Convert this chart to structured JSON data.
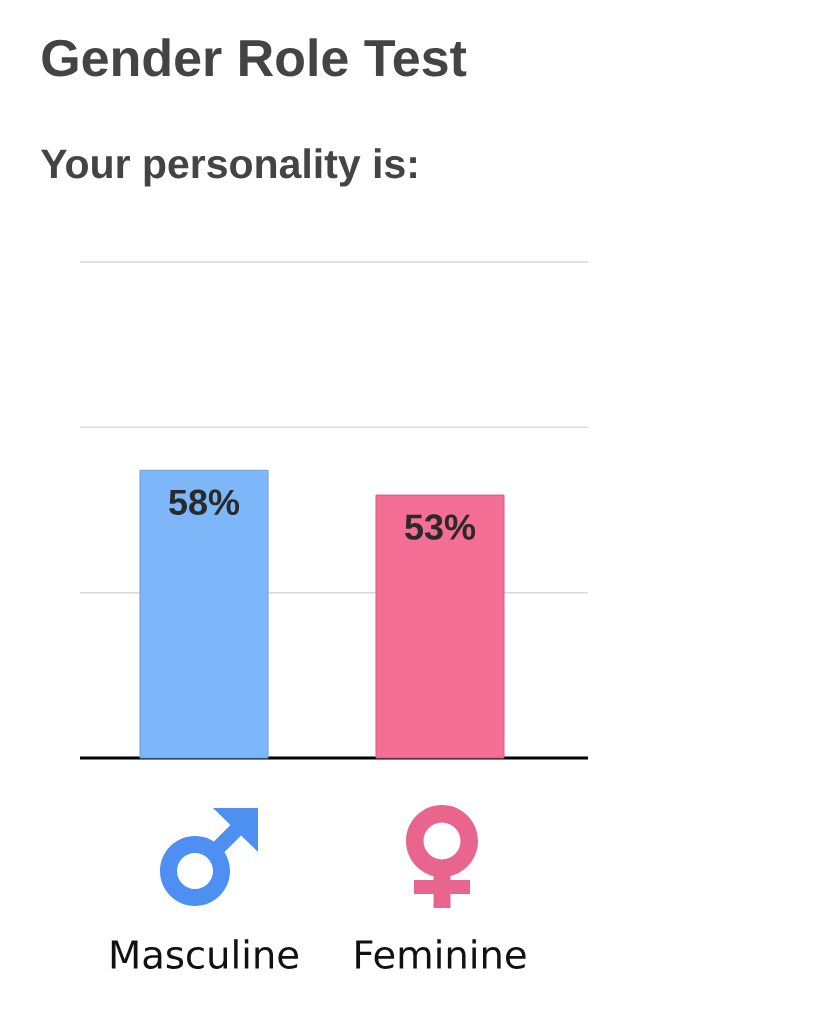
{
  "chart_data": {
    "type": "bar",
    "title": "Gender Role Test",
    "subtitle": "Your personality is:",
    "categories": [
      "Masculine",
      "Feminine"
    ],
    "values": [
      58,
      53
    ],
    "colors": [
      "#7db7f9",
      "#f46e96"
    ],
    "value_labels": [
      "58%",
      "53%"
    ],
    "ylim": [
      0,
      100
    ],
    "yticks": [
      {
        "value": 0,
        "label": null
      },
      {
        "value": 33.3,
        "label": null
      },
      {
        "value": 66.7,
        "label": null
      },
      {
        "value": 100,
        "label": null
      }
    ],
    "grid": "y",
    "tick_labels": "x"
  }
}
